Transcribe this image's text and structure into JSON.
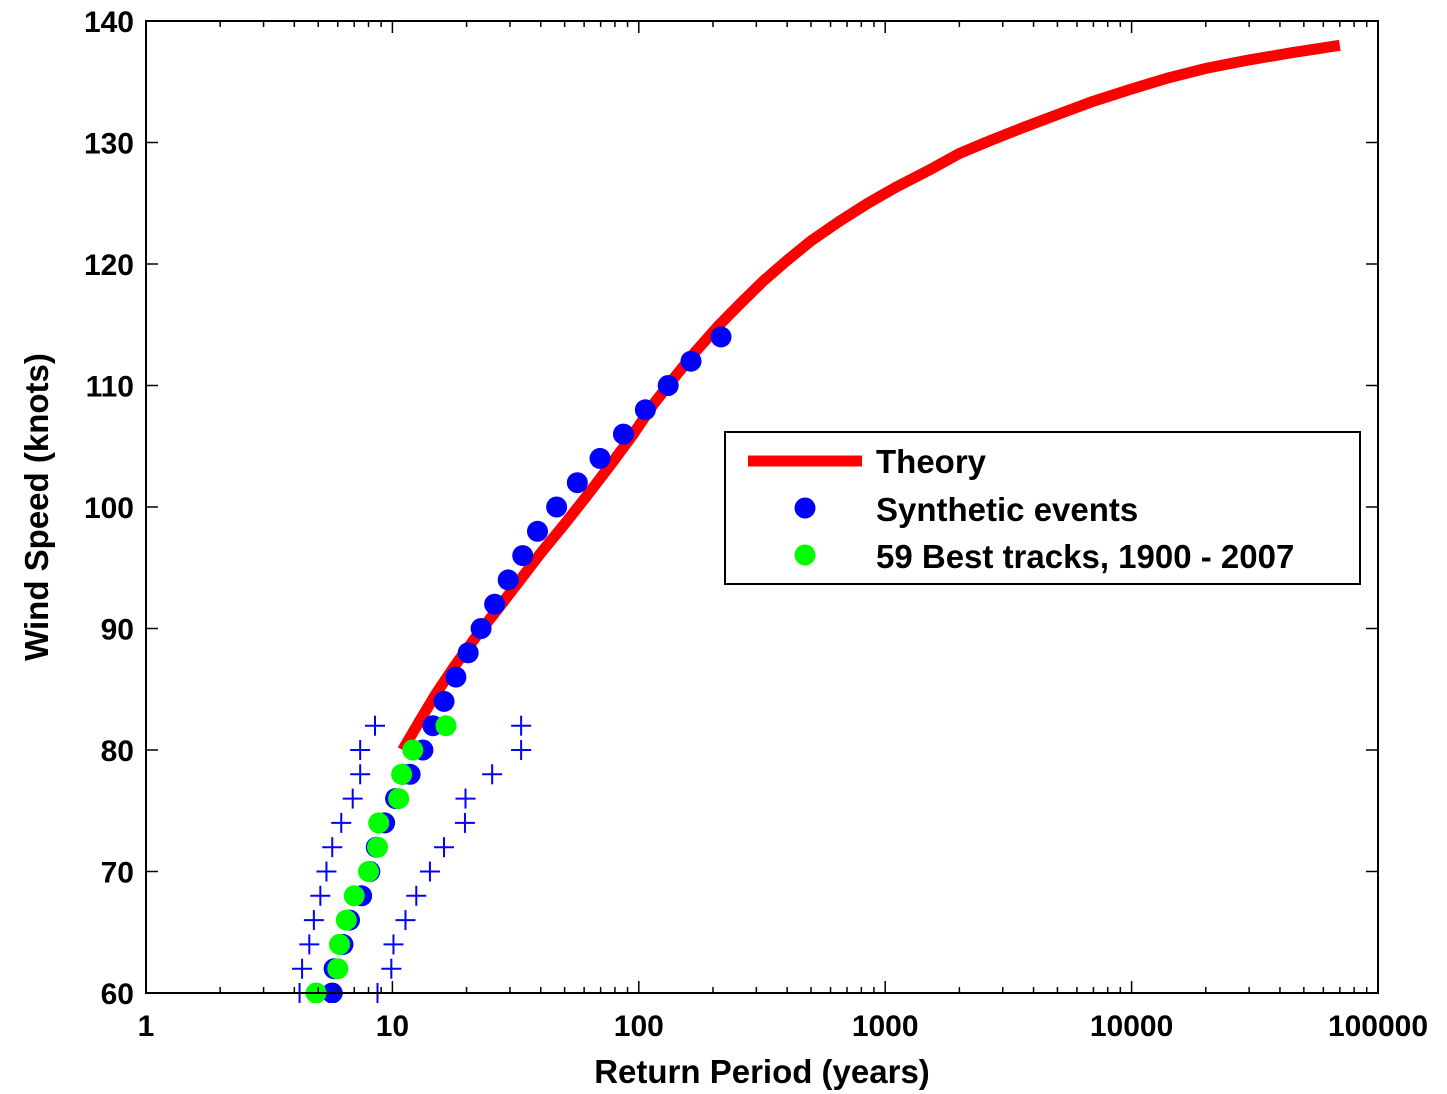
{
  "chart_data": {
    "type": "scatter",
    "xlabel": "Return Period (years)",
    "ylabel": "Wind Speed (knots)",
    "xscale": "log",
    "xlim": [
      1,
      100000
    ],
    "ylim": [
      60,
      140
    ],
    "xticks": [
      1,
      10,
      100,
      1000,
      10000,
      100000
    ],
    "xtick_labels": [
      "1",
      "10",
      "100",
      "1000",
      "10000",
      "100000"
    ],
    "yticks": [
      60,
      70,
      80,
      90,
      100,
      110,
      120,
      130,
      140
    ],
    "ytick_labels": [
      "60",
      "70",
      "80",
      "90",
      "100",
      "110",
      "120",
      "130",
      "140"
    ],
    "grid": false,
    "legend_position": "right",
    "colors": {
      "theory": "#ff0000",
      "synthetic": "#0000ff",
      "best_tracks": "#00ff00",
      "bounds": "#0000ff"
    },
    "series": [
      {
        "name": "Theory",
        "kind": "line",
        "x": [
          11,
          13,
          15,
          18,
          22,
          27,
          33,
          40,
          50,
          62,
          77,
          95,
          115,
          140,
          170,
          210,
          260,
          320,
          400,
          500,
          650,
          850,
          1100,
          1500,
          2000,
          2700,
          3600,
          5000,
          7000,
          10000,
          14000,
          20000,
          30000,
          45000,
          70000
        ],
        "y": [
          80,
          82.5,
          84.6,
          87,
          89.4,
          91.7,
          94,
          96.2,
          98.6,
          101,
          103.5,
          106,
          108.5,
          110.7,
          112.8,
          114.9,
          116.8,
          118.6,
          120.3,
          121.9,
          123.5,
          125,
          126.3,
          127.7,
          129.1,
          130.2,
          131.2,
          132.3,
          133.4,
          134.4,
          135.3,
          136.1,
          136.8,
          137.4,
          138
        ]
      },
      {
        "name": "Synthetic events",
        "kind": "markers",
        "x": [
          5.7,
          5.8,
          6.3,
          6.7,
          7.5,
          8.1,
          8.6,
          9.3,
          10.3,
          11.0,
          11.8,
          13.3,
          14.6,
          16.2,
          18.1,
          20.3,
          22.9,
          26.0,
          29.5,
          33.8,
          38.8,
          46.4,
          56.3,
          69.6,
          86.6,
          106.3,
          131.6,
          162.9,
          215.6
        ],
        "y": [
          60,
          62,
          64,
          66,
          68,
          70,
          72,
          74,
          76,
          78,
          78,
          80,
          82,
          84,
          86,
          88,
          90,
          92,
          94,
          96,
          98,
          100,
          102,
          104,
          106,
          108,
          110,
          112,
          114
        ]
      },
      {
        "name": "59 Best tracks, 1900 - 2007",
        "kind": "markers",
        "x": [
          4.9,
          6.0,
          6.1,
          6.5,
          7.0,
          8.0,
          8.7,
          8.8,
          10.6,
          10.9,
          12.1,
          16.5
        ],
        "y": [
          60,
          62,
          64,
          66,
          68,
          70,
          72,
          74,
          76,
          78,
          80,
          82
        ]
      },
      {
        "kind": "plus",
        "x": [
          4.2,
          4.3,
          4.6,
          4.8,
          5.1,
          5.4,
          5.7,
          6.2,
          6.9,
          7.4,
          7.4,
          8.5
        ],
        "y": [
          60,
          62,
          64,
          66,
          68,
          70,
          72,
          74,
          76,
          78,
          80,
          82
        ]
      },
      {
        "kind": "plus",
        "x": [
          8.7,
          9.9,
          10.1,
          11.3,
          12.5,
          14.2,
          16.2,
          19.7,
          19.8,
          25.4,
          33.3,
          33.3
        ],
        "y": [
          60,
          62,
          64,
          66,
          68,
          70,
          72,
          74,
          76,
          78,
          80,
          82
        ]
      }
    ]
  }
}
